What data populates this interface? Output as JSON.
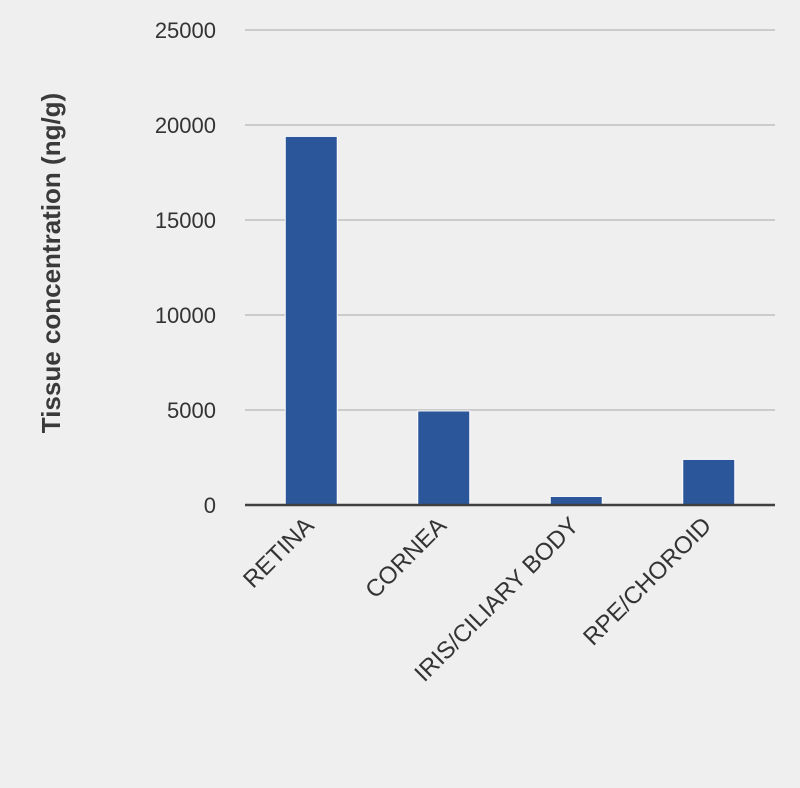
{
  "chart_data": {
    "type": "bar",
    "title": "",
    "xlabel": "",
    "ylabel": "Tissue concentration (ng/g)",
    "categories": [
      "RETINA",
      "CORNEA",
      "IRIS/CILIARY BODY",
      "RPE/CHOROID"
    ],
    "values": [
      19400,
      4950,
      450,
      2400
    ],
    "ylim": [
      0,
      25000
    ],
    "yticks": [
      0,
      5000,
      10000,
      15000,
      20000,
      25000
    ],
    "grid": true,
    "legend": "none"
  },
  "colors": {
    "background": "#efefef",
    "bar": "#2b579a",
    "bar_edge": "#ffffff",
    "grid": "#bfbfbf",
    "axis": "#404040",
    "text": "#333333"
  }
}
